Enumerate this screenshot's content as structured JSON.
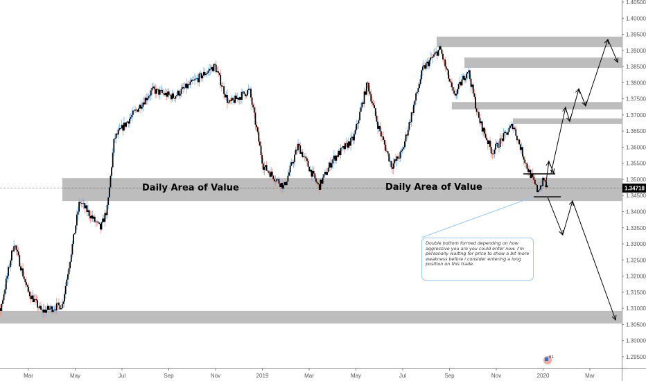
{
  "chart_data": {
    "type": "candlestick",
    "title": "",
    "x_unit": "months since Jan 2018",
    "x_ticks": [
      {
        "t": 2,
        "label": "Mar"
      },
      {
        "t": 4,
        "label": "May"
      },
      {
        "t": 6,
        "label": "Jul"
      },
      {
        "t": 8,
        "label": "Sep"
      },
      {
        "t": 10,
        "label": "Nov"
      },
      {
        "t": 12,
        "label": "2019"
      },
      {
        "t": 14,
        "label": "Mar"
      },
      {
        "t": 16,
        "label": "May"
      },
      {
        "t": 18,
        "label": "Jul"
      },
      {
        "t": 20,
        "label": "Sep"
      },
      {
        "t": 22,
        "label": "Nov"
      },
      {
        "t": 24,
        "label": "2020"
      },
      {
        "t": 26,
        "label": "Mar"
      }
    ],
    "y_ticks": [
      "1.29500",
      "1.30000",
      "1.30500",
      "1.31000",
      "1.31500",
      "1.32000",
      "1.32500",
      "1.33000",
      "1.33500",
      "1.34000",
      "1.34500",
      "1.35000",
      "1.35500",
      "1.36000",
      "1.36500",
      "1.37000",
      "1.37500",
      "1.38000",
      "1.38500",
      "1.39000",
      "1.39500",
      "1.40000",
      "1.40500"
    ],
    "ylim": [
      1.2935,
      1.4055
    ],
    "current_price": "1.34718",
    "price_path": [
      [
        0.79,
        1.309
      ],
      [
        1.38,
        1.3304
      ],
      [
        1.97,
        1.3154
      ],
      [
        2.56,
        1.309
      ],
      [
        3.45,
        1.3111
      ],
      [
        3.75,
        1.324
      ],
      [
        4.19,
        1.3433
      ],
      [
        5.08,
        1.3347
      ],
      [
        5.38,
        1.3412
      ],
      [
        5.67,
        1.3627
      ],
      [
        6.12,
        1.367
      ],
      [
        7.3,
        1.3777
      ],
      [
        8.19,
        1.3756
      ],
      [
        9.38,
        1.382
      ],
      [
        9.97,
        1.3852
      ],
      [
        10.56,
        1.3734
      ],
      [
        11.45,
        1.3777
      ],
      [
        12.04,
        1.3541
      ],
      [
        12.93,
        1.3476
      ],
      [
        13.53,
        1.3605
      ],
      [
        14.41,
        1.3476
      ],
      [
        15.01,
        1.3562
      ],
      [
        15.9,
        1.3627
      ],
      [
        16.49,
        1.3799
      ],
      [
        16.93,
        1.367
      ],
      [
        17.53,
        1.3541
      ],
      [
        17.97,
        1.3584
      ],
      [
        18.86,
        1.3842
      ],
      [
        19.6,
        1.3906
      ],
      [
        20.19,
        1.3756
      ],
      [
        20.79,
        1.3842
      ],
      [
        21.23,
        1.3691
      ],
      [
        21.82,
        1.3584
      ],
      [
        22.71,
        1.367
      ],
      [
        23.3,
        1.3541
      ],
      [
        23.75,
        1.3466
      ],
      [
        24.04,
        1.3498
      ],
      [
        24.19,
        1.3472
      ]
    ],
    "zones": [
      {
        "t0": 3.45,
        "t1": 27.36,
        "p0": 1.3433,
        "p1": 1.3504,
        "label": "Daily Area of Value",
        "label2": "Daily Area of Value"
      },
      {
        "t0": 0,
        "t1": 27.36,
        "p0": 1.3053,
        "p1": 1.3092
      },
      {
        "t0": 19.45,
        "t1": 27.36,
        "p0": 1.391,
        "p1": 1.3943
      },
      {
        "t0": 20.64,
        "t1": 27.36,
        "p0": 1.3846,
        "p1": 1.3878
      },
      {
        "t0": 20.1,
        "t1": 27.36,
        "p0": 1.3717,
        "p1": 1.374
      },
      {
        "t0": 22.71,
        "t1": 27.36,
        "p0": 1.3672,
        "p1": 1.3689
      }
    ],
    "levels": [
      {
        "t0": 23.16,
        "t1": 24.52,
        "p": 1.3517
      },
      {
        "t0": 23.6,
        "t1": 24.76,
        "p": 1.3446
      }
    ],
    "arrow_paths": [
      [
        [
          24.1,
          1.3476
        ],
        [
          24.25,
          1.3556
        ],
        [
          24.46,
          1.3519
        ]
      ],
      [
        [
          24.34,
          1.3519
        ],
        [
          24.96,
          1.3723
        ],
        [
          25.14,
          1.368
        ],
        [
          25.53,
          1.3781
        ],
        [
          25.82,
          1.3728
        ],
        [
          26.77,
          1.3934
        ],
        [
          27.19,
          1.3863
        ]
      ],
      [
        [
          24.19,
          1.3446
        ],
        [
          24.84,
          1.3328
        ],
        [
          25.26,
          1.3433
        ],
        [
          27.1,
          1.3064
        ]
      ]
    ],
    "annotation": {
      "text": "Double bottom formed depending on how aggressive you are you could enter now. I'm personally waiting for price to show a bit more weakness before i consider entering a long position on this trade.",
      "anchor": [
        23.6,
        1.3446
      ]
    },
    "event_badge": "61"
  }
}
